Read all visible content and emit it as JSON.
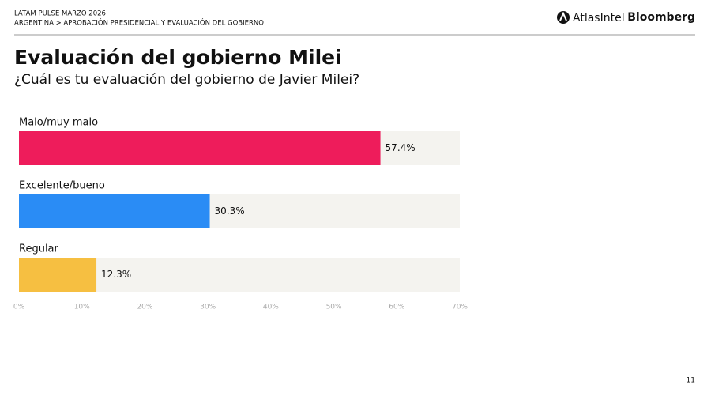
{
  "header": {
    "line1": "LATAM PULSE MARZO 2026",
    "line2": "ARGENTINA > APROBACIÓN PRESIDENCIAL Y EVALUACIÓN DEL GOBIERNO",
    "logos": [
      "AtlasIntel",
      "Bloomberg"
    ]
  },
  "page_number": "11",
  "chart_data": {
    "type": "bar",
    "orientation": "horizontal",
    "title": "Evaluación del gobierno Milei",
    "subtitle": "¿Cuál es tu evaluación del gobierno de Javier Milei?",
    "categories": [
      "Malo/muy malo",
      "Excelente/bueno",
      "Regular"
    ],
    "values": [
      57.4,
      30.3,
      12.3
    ],
    "value_labels": [
      "57.4%",
      "30.3%",
      "12.3%"
    ],
    "colors": [
      "#ee1c5b",
      "#2a8cf5",
      "#f6bf41"
    ],
    "xlim": [
      0,
      70
    ],
    "xticks": [
      {
        "value": 0,
        "label": "0%"
      },
      {
        "value": 10,
        "label": "10%"
      },
      {
        "value": 20,
        "label": "20%"
      },
      {
        "value": 30,
        "label": "30%"
      },
      {
        "value": 40,
        "label": "40%"
      },
      {
        "value": 50,
        "label": "50%"
      },
      {
        "value": 60,
        "label": "60%"
      },
      {
        "value": 70,
        "label": "70%"
      }
    ]
  }
}
